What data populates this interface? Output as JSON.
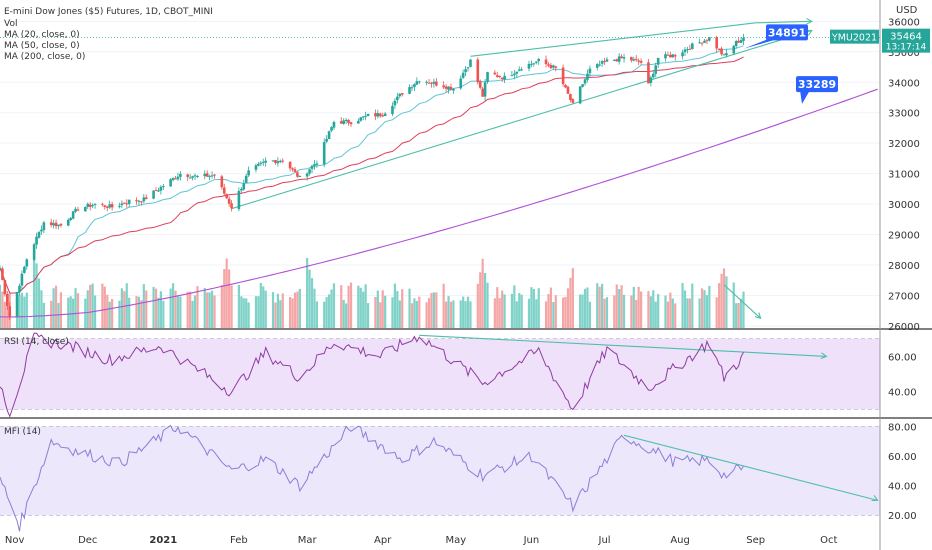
{
  "header": {
    "symbol_line": "E-mini Dow Jones ($5) Futures, 1D, CBOT_MINI",
    "indicators": [
      "Vol",
      "MA (20, close, 0)",
      "MA (50, close, 0)",
      "MA (200, close, 0)"
    ],
    "currency": "USD"
  },
  "colors": {
    "up": "#26a69a",
    "down": "#ef5350",
    "vol_up": "#7fd2c8",
    "vol_down": "#f4a6a6",
    "ma20": "#5fc4d6",
    "ma50": "#e0405a",
    "ma200": "#b04fd6",
    "trendline": "#4dbfa7",
    "rsi": "#8e3ca0",
    "rsi_band": "#efe1fa",
    "mfi": "#8a7fd6",
    "mfi_band": "#ece7fb",
    "label_blue": "#2962ff",
    "price_green": "#26a69a"
  },
  "chart_data": [
    {
      "type": "candlestick",
      "title": "E-mini Dow Jones ($5) Futures, 1D, CBOT_MINI",
      "ylabel": "USD",
      "ylim": [
        25900,
        36700
      ],
      "yticks": [
        26000,
        27000,
        28000,
        29000,
        30000,
        31000,
        32000,
        33000,
        34000,
        35000,
        36000
      ],
      "xticks": [
        "Nov",
        "Dec",
        "2021",
        "Feb",
        "Mar",
        "Apr",
        "May",
        "Jun",
        "Jul",
        "Aug",
        "Sep",
        "Oct"
      ],
      "x_range": [
        "2020-10-26",
        "2021-10-22"
      ],
      "last_price": 35464,
      "countdown": "13:17:14",
      "price_levels": [
        {
          "label": "34891",
          "value": 34891
        },
        {
          "label": "33289",
          "value": 33289
        }
      ],
      "contract_label": "YMU2021",
      "close_anchors": [
        [
          "2020-10-26",
          27900
        ],
        [
          "2020-10-30",
          26300
        ],
        [
          "2020-11-06",
          28200
        ],
        [
          "2020-11-13",
          29400
        ],
        [
          "2020-11-20",
          29300
        ],
        [
          "2020-11-27",
          29850
        ],
        [
          "2020-12-04",
          30000
        ],
        [
          "2020-12-11",
          29900
        ],
        [
          "2020-12-18",
          30100
        ],
        [
          "2020-12-24",
          30150
        ],
        [
          "2020-12-31",
          30550
        ],
        [
          "2021-01-08",
          31000
        ],
        [
          "2021-01-15",
          30900
        ],
        [
          "2021-01-22",
          30950
        ],
        [
          "2021-01-29",
          29900
        ],
        [
          "2021-02-05",
          31050
        ],
        [
          "2021-02-12",
          31400
        ],
        [
          "2021-02-19",
          31450
        ],
        [
          "2021-02-26",
          30850
        ],
        [
          "2021-03-05",
          31400
        ],
        [
          "2021-03-12",
          32700
        ],
        [
          "2021-03-19",
          32700
        ],
        [
          "2021-03-26",
          32900
        ],
        [
          "2021-04-01",
          32950
        ],
        [
          "2021-04-09",
          33650
        ],
        [
          "2021-04-16",
          34100
        ],
        [
          "2021-04-23",
          33950
        ],
        [
          "2021-04-30",
          33800
        ],
        [
          "2021-05-07",
          34700
        ],
        [
          "2021-05-12",
          33550
        ],
        [
          "2021-05-14",
          34300
        ],
        [
          "2021-05-21",
          34150
        ],
        [
          "2021-05-28",
          34500
        ],
        [
          "2021-06-04",
          34700
        ],
        [
          "2021-06-11",
          34450
        ],
        [
          "2021-06-18",
          33250
        ],
        [
          "2021-06-21",
          33800
        ],
        [
          "2021-06-25",
          34400
        ],
        [
          "2021-07-02",
          34700
        ],
        [
          "2021-07-09",
          34800
        ],
        [
          "2021-07-16",
          34650
        ],
        [
          "2021-07-19",
          33900
        ],
        [
          "2021-07-23",
          34800
        ],
        [
          "2021-07-30",
          34900
        ],
        [
          "2021-08-06",
          35200
        ],
        [
          "2021-08-13",
          35450
        ],
        [
          "2021-08-19",
          34850
        ],
        [
          "2021-08-24",
          35300
        ],
        [
          "2021-08-27",
          35464
        ]
      ]
    },
    {
      "type": "bar",
      "title": "Vol",
      "peaks": [
        [
          "2020-11-09",
          1.0
        ],
        [
          "2021-01-27",
          0.9
        ],
        [
          "2021-03-01",
          1.0
        ],
        [
          "2021-05-12",
          0.9
        ],
        [
          "2021-06-18",
          0.8
        ],
        [
          "2021-08-19",
          0.85
        ]
      ]
    },
    {
      "type": "line",
      "title": "RSI (14, close)",
      "ylim": [
        25,
        75
      ],
      "yticks": [
        40,
        60
      ],
      "bands": [
        30,
        70
      ],
      "anchors": [
        [
          "2020-10-26",
          45
        ],
        [
          "2020-10-30",
          28
        ],
        [
          "2020-11-09",
          70
        ],
        [
          "2020-11-24",
          66
        ],
        [
          "2020-12-10",
          58
        ],
        [
          "2020-12-31",
          66
        ],
        [
          "2021-01-29",
          40
        ],
        [
          "2021-02-12",
          62
        ],
        [
          "2021-02-26",
          48
        ],
        [
          "2021-03-12",
          68
        ],
        [
          "2021-03-31",
          60
        ],
        [
          "2021-04-16",
          72
        ],
        [
          "2021-05-12",
          45
        ],
        [
          "2021-06-04",
          63
        ],
        [
          "2021-06-18",
          30
        ],
        [
          "2021-07-02",
          64
        ],
        [
          "2021-07-19",
          42
        ],
        [
          "2021-08-13",
          68
        ],
        [
          "2021-08-19",
          48
        ],
        [
          "2021-08-27",
          60
        ]
      ]
    },
    {
      "type": "line",
      "title": "MFI (14)",
      "ylim": [
        10,
        85
      ],
      "yticks": [
        20,
        40,
        60,
        80
      ],
      "bands": [
        20,
        80
      ],
      "anchors": [
        [
          "2020-10-26",
          45
        ],
        [
          "2020-11-03",
          13
        ],
        [
          "2020-11-16",
          70
        ],
        [
          "2020-11-27",
          63
        ],
        [
          "2020-12-14",
          55
        ],
        [
          "2021-01-07",
          80
        ],
        [
          "2021-01-29",
          50
        ],
        [
          "2021-02-12",
          58
        ],
        [
          "2021-02-26",
          40
        ],
        [
          "2021-03-19",
          80
        ],
        [
          "2021-04-09",
          58
        ],
        [
          "2021-04-22",
          70
        ],
        [
          "2021-05-12",
          47
        ],
        [
          "2021-06-01",
          60
        ],
        [
          "2021-06-18",
          26
        ],
        [
          "2021-07-09",
          74
        ],
        [
          "2021-07-30",
          56
        ],
        [
          "2021-08-13",
          57
        ],
        [
          "2021-08-19",
          47
        ],
        [
          "2021-08-27",
          52
        ]
      ]
    }
  ],
  "rsi_ticks": [
    "60.00",
    "40.00"
  ],
  "mfi_ticks": [
    "80.00",
    "60.00",
    "40.00",
    "20.00"
  ],
  "price_ticks": [
    "36000",
    "35000",
    "34000",
    "33000",
    "32000",
    "31000",
    "30000",
    "29000",
    "28000",
    "27000",
    "26000"
  ]
}
